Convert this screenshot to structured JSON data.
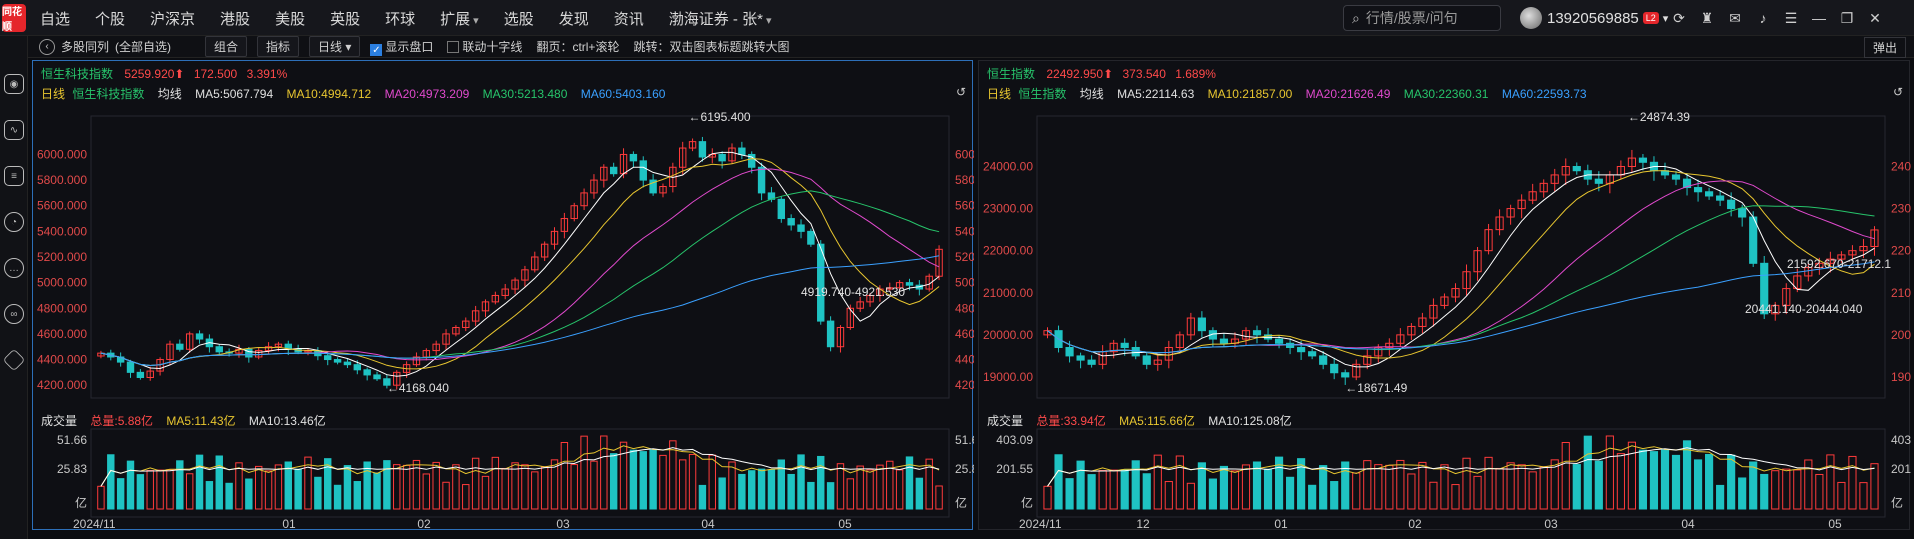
{
  "app": {
    "logo": "同花顺"
  },
  "menu": [
    "自选",
    "个股",
    "沪深京",
    "港股",
    "美股",
    "英股",
    "环球",
    "扩展",
    "选股",
    "发现",
    "资讯",
    "渤海证券 - 张*"
  ],
  "search": {
    "placeholder": "行情/股票/问句"
  },
  "user": {
    "phone": "13920569885",
    "badge": "L2"
  },
  "toolbar": {
    "title": "多股同列",
    "group": "(全部自选)",
    "combo": "组合",
    "indicator": "指标",
    "period": "日线 ▾",
    "show_panel": "显示盘口",
    "crosshair": "联动十字线",
    "paging": "翻页：ctrl+滚轮",
    "jump": "跳转：双击图表标题跳转大图",
    "eject": "弹出"
  },
  "panels": [
    {
      "name": "恒生科技指数",
      "price": "5259.920",
      "change": "172.500",
      "pct": "3.391%",
      "period": "日线",
      "ma_label": "均线",
      "ma5": "MA5:5067.794",
      "ma10": "MA10:4994.712",
      "ma20": "MA20:4973.209",
      "ma30": "MA30:5213.480",
      "ma60": "MA60:5403.160",
      "vol_label": "成交量",
      "vol_total": "总量:5.88亿",
      "vol_ma5": "MA5:11.43亿",
      "vol_ma10": "MA10:13.46亿",
      "yticks": [
        "6000.000",
        "5800.000",
        "5600.000",
        "5400.000",
        "5200.000",
        "5000.000",
        "4800.000",
        "4600.000",
        "4400.000",
        "4200.000"
      ],
      "vticks": [
        "51.66",
        "25.83",
        "亿"
      ],
      "xticks": [
        "2024/11",
        "01",
        "02",
        "03",
        "04",
        "05"
      ],
      "hi": "6195.400",
      "lo": "4168.040",
      "rng": "4919.740-4921.530"
    },
    {
      "name": "恒生指数",
      "price": "22492.950",
      "change": "373.540",
      "pct": "1.689%",
      "period": "日线",
      "ma_label": "均线",
      "ma5": "MA5:22114.63",
      "ma10": "MA10:21857.00",
      "ma20": "MA20:21626.49",
      "ma30": "MA30:22360.31",
      "ma60": "MA60:22593.73",
      "vol_label": "成交量",
      "vol_total": "总量:33.94亿",
      "vol_ma5": "MA5:115.66亿",
      "vol_ma10": "MA10:125.08亿",
      "yticks": [
        "24000.00",
        "23000.00",
        "22000.00",
        "21000.00",
        "20000.00",
        "19000.00"
      ],
      "vticks": [
        "403.09",
        "201.55",
        "亿"
      ],
      "xticks": [
        "2024/11",
        "12",
        "01",
        "02",
        "03",
        "04",
        "05"
      ],
      "hi": "24874.39",
      "lo": "18671.49",
      "rng1": "21592.670-21712.1",
      "rng2": "20441.140-20444.040"
    }
  ],
  "chart_data": [
    {
      "type": "candlestick",
      "title": "恒生科技指数",
      "closes": [
        4450,
        4420,
        4380,
        4300,
        4260,
        4310,
        4400,
        4520,
        4480,
        4600,
        4560,
        4500,
        4460,
        4450,
        4480,
        4420,
        4470,
        4500,
        4520,
        4480,
        4460,
        4470,
        4430,
        4400,
        4380,
        4360,
        4320,
        4280,
        4250,
        4200,
        4300,
        4360,
        4420,
        4470,
        4520,
        4600,
        4650,
        4700,
        4780,
        4850,
        4900,
        4950,
        5020,
        5100,
        5200,
        5300,
        5400,
        5500,
        5600,
        5700,
        5800,
        5900,
        5850,
        6000,
        5950,
        5800,
        5700,
        5750,
        5900,
        6050,
        6100,
        5980,
        6000,
        5950,
        6050,
        6000,
        5900,
        5700,
        5650,
        5500,
        5450,
        5400,
        5300,
        4700,
        4500,
        4650,
        4800,
        4850,
        4900,
        4950,
        4960,
        5000,
        4980,
        4950,
        5050,
        5259.92
      ],
      "ylim": [
        4100,
        6300
      ]
    },
    {
      "type": "candlestick",
      "title": "恒生指数",
      "closes": [
        20100,
        19700,
        19500,
        19400,
        19300,
        19600,
        19800,
        19700,
        19500,
        19300,
        19400,
        19700,
        20000,
        20400,
        20100,
        19900,
        19800,
        19900,
        20100,
        20000,
        19900,
        19800,
        19700,
        19600,
        19500,
        19300,
        19100,
        19000,
        19300,
        19500,
        19700,
        19800,
        20000,
        20200,
        20400,
        20700,
        20900,
        21100,
        21500,
        22000,
        22500,
        22800,
        23000,
        23200,
        23400,
        23600,
        23800,
        24000,
        23900,
        23700,
        23600,
        23800,
        24000,
        24200,
        24100,
        23900,
        23800,
        23700,
        23500,
        23400,
        23300,
        23200,
        23000,
        22800,
        21700,
        20500,
        20700,
        21100,
        21400,
        21600,
        21700,
        21800,
        21900,
        22000,
        22100,
        22493
      ],
      "ylim": [
        18500,
        25200
      ]
    }
  ]
}
